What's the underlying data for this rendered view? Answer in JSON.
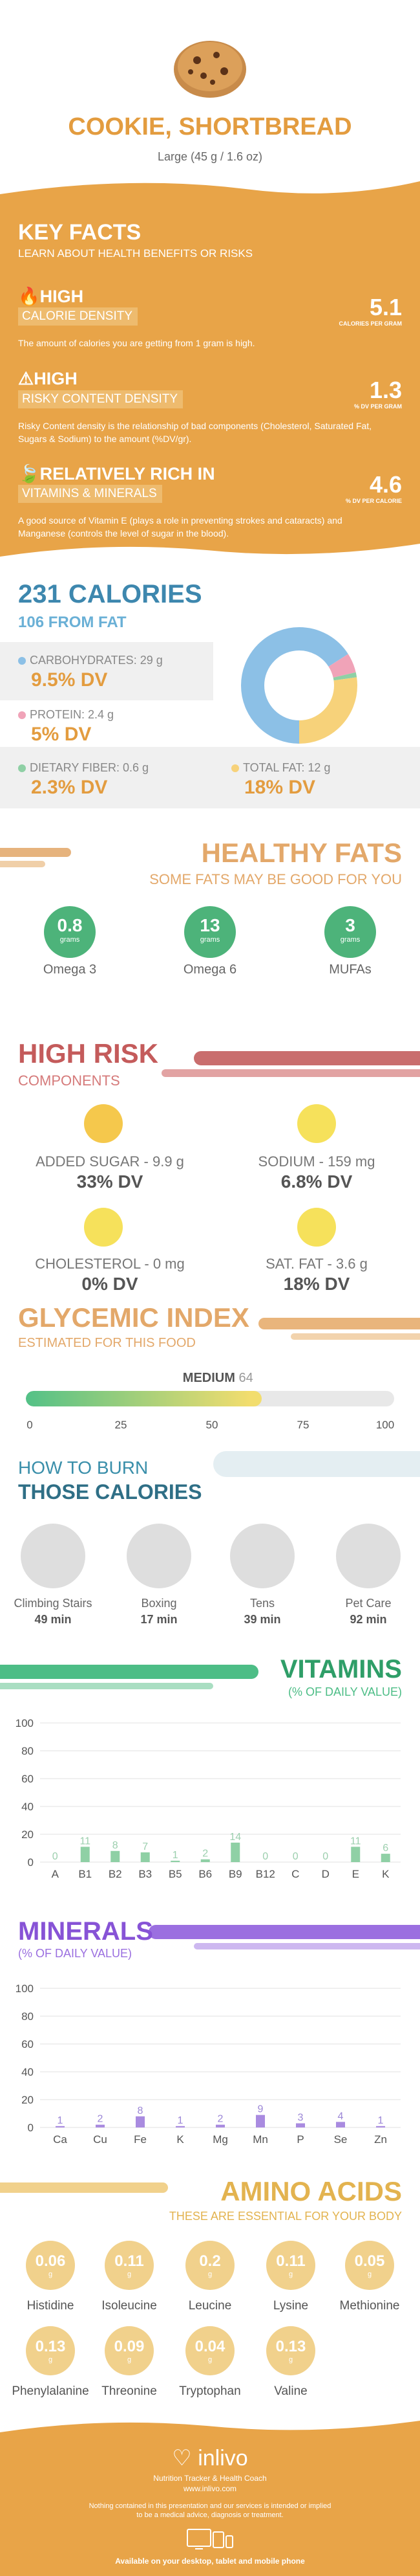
{
  "header": {
    "title": "COOKIE, SHORTBREAD",
    "serving": "Large (45 g / 1.6 oz)"
  },
  "key_facts": {
    "title": "KEY FACTS",
    "subtitle": "LEARN ABOUT HEALTH BENEFITS OR RISKS",
    "items": [
      {
        "level": "HIGH",
        "name": "CALORIE DENSITY",
        "desc": "The amount of calories you are getting from 1 gram is high.",
        "value": "5.1",
        "unit": "CALORIES PER GRAM"
      },
      {
        "level": "HIGH",
        "name": "RISKY CONTENT DENSITY",
        "desc": "Risky Content density is the relationship of bad components (Cholesterol, Saturated Fat, Sugars & Sodium) to the amount (%DV/gr).",
        "value": "1.3",
        "unit": "% DV PER GRAM"
      },
      {
        "level": "RELATIVELY RICH  IN",
        "name": "VITAMINS & MINERALS",
        "desc": "A good source of Vitamin E (plays a role in preventing strokes and cataracts) and Manganese (controls the level of sugar in the blood).",
        "value": "4.6",
        "unit": "% DV PER CALORIE"
      }
    ]
  },
  "calories": {
    "title": "231 CALORIES",
    "from_fat": "106 FROM FAT",
    "nutrients": [
      {
        "label": "CARBOHYDRATES: 29 g",
        "dv": "9.5% DV",
        "color": "#8cc0e6"
      },
      {
        "label": "PROTEIN: 2.4 g",
        "dv": "5% DV",
        "color": "#f0a3b8"
      },
      {
        "label": "DIETARY FIBER: 0.6 g",
        "dv": "2.3% DV",
        "color": "#8fd0a5"
      },
      {
        "label": "TOTAL FAT: 12 g",
        "dv": "18% DV",
        "color": "#f7d27a"
      }
    ],
    "donut": [
      {
        "value": 29,
        "color": "#8cc0e6"
      },
      {
        "value": 2.4,
        "color": "#f0a3b8"
      },
      {
        "value": 0.6,
        "color": "#8fd0a5"
      },
      {
        "value": 12,
        "color": "#f7d27a"
      }
    ]
  },
  "healthy_fats": {
    "title": "HEALTHY FATS",
    "subtitle": "SOME FATS MAY BE GOOD FOR YOU",
    "unit": "grams",
    "items": [
      {
        "value": "0.8",
        "label": "Omega 3"
      },
      {
        "value": "13",
        "label": "Omega 6"
      },
      {
        "value": "3",
        "label": "MUFAs"
      }
    ]
  },
  "high_risk": {
    "title": "HIGH RISK",
    "subtitle": "COMPONENTS",
    "items": [
      {
        "label": "ADDED SUGAR - 9.9 g",
        "dv": "33% DV",
        "icon": "sad-face-icon"
      },
      {
        "label": "SODIUM - 159 mg",
        "dv": "6.8% DV",
        "icon": "neutral-face-icon"
      },
      {
        "label": "CHOLESTEROL - 0 mg",
        "dv": "0% DV",
        "icon": "happy-face-icon"
      },
      {
        "label": "SAT. FAT - 3.6 g",
        "dv": "18% DV",
        "icon": "neutral-face-icon"
      }
    ]
  },
  "glycemic": {
    "title": "GLYCEMIC INDEX",
    "subtitle": "ESTIMATED FOR THIS FOOD",
    "level": "MEDIUM",
    "value": 64,
    "value_text": "64",
    "ticks": [
      "0",
      "25",
      "50",
      "75",
      "100"
    ]
  },
  "burn": {
    "title1": "HOW TO BURN",
    "title2": "THOSE CALORIES",
    "items": [
      {
        "label": "Climbing Stairs",
        "time": "49 min",
        "icon": "stairs-icon"
      },
      {
        "label": "Boxing",
        "time": "17 min",
        "icon": "boxing-icon"
      },
      {
        "label": "Tens",
        "time": "39 min",
        "icon": "tennis-icon"
      },
      {
        "label": "Pet Care",
        "time": "92 min",
        "icon": "dog-walk-icon"
      }
    ]
  },
  "chart_data": [
    {
      "type": "bar",
      "title": "VITAMINS",
      "subtitle": "(% OF DAILY VALUE)",
      "categories": [
        "A",
        "B1",
        "B2",
        "B3",
        "B5",
        "B6",
        "B9",
        "B12",
        "C",
        "D",
        "E",
        "K"
      ],
      "values": [
        0,
        11,
        8,
        7,
        1,
        2,
        14,
        0,
        0,
        0,
        11,
        6
      ],
      "yticks": [
        "100",
        "80",
        "60",
        "40",
        "20",
        "0"
      ],
      "ylim": [
        0,
        100
      ],
      "color": "#8fd0a5",
      "label_color": "#9ccfae"
    },
    {
      "type": "bar",
      "title": "MINERALS",
      "subtitle": "(% OF DAILY VALUE)",
      "categories": [
        "Ca",
        "Cu",
        "Fe",
        "K",
        "Mg",
        "Mn",
        "P",
        "Se",
        "Zn"
      ],
      "values": [
        1,
        2,
        8,
        1,
        2,
        9,
        3,
        4,
        1
      ],
      "yticks": [
        "100",
        "80",
        "60",
        "40",
        "20",
        "0"
      ],
      "ylim": [
        0,
        100
      ],
      "color": "#a98be0",
      "label_color": "#9b86d6"
    }
  ],
  "amino": {
    "title": "AMINO ACIDS",
    "subtitle": "THESE ARE ESSENTIAL FOR YOUR BODY",
    "unit": "g",
    "items": [
      {
        "value": "0.06",
        "label": "Histidine"
      },
      {
        "value": "0.11",
        "label": "Isoleucine"
      },
      {
        "value": "0.2",
        "label": "Leucine"
      },
      {
        "value": "0.11",
        "label": "Lysine"
      },
      {
        "value": "0.05",
        "label": "Methionine"
      },
      {
        "value": "0.13",
        "label": "Phenylalanine"
      },
      {
        "value": "0.09",
        "label": "Threonine"
      },
      {
        "value": "0.04",
        "label": "Tryptophan"
      },
      {
        "value": "0.13",
        "label": "Valine"
      }
    ]
  },
  "footer": {
    "brand": "inlivo",
    "tagline": "Nutrition Tracker & Health Coach",
    "url": "www.inlivo.com",
    "disclaimer1": "Nothing contained in this presentation and our services is intended or implied",
    "disclaimer2": "to be a medical advice, diagnosis or treatment.",
    "available": "Available on your desktop, tablet and mobile phone"
  }
}
